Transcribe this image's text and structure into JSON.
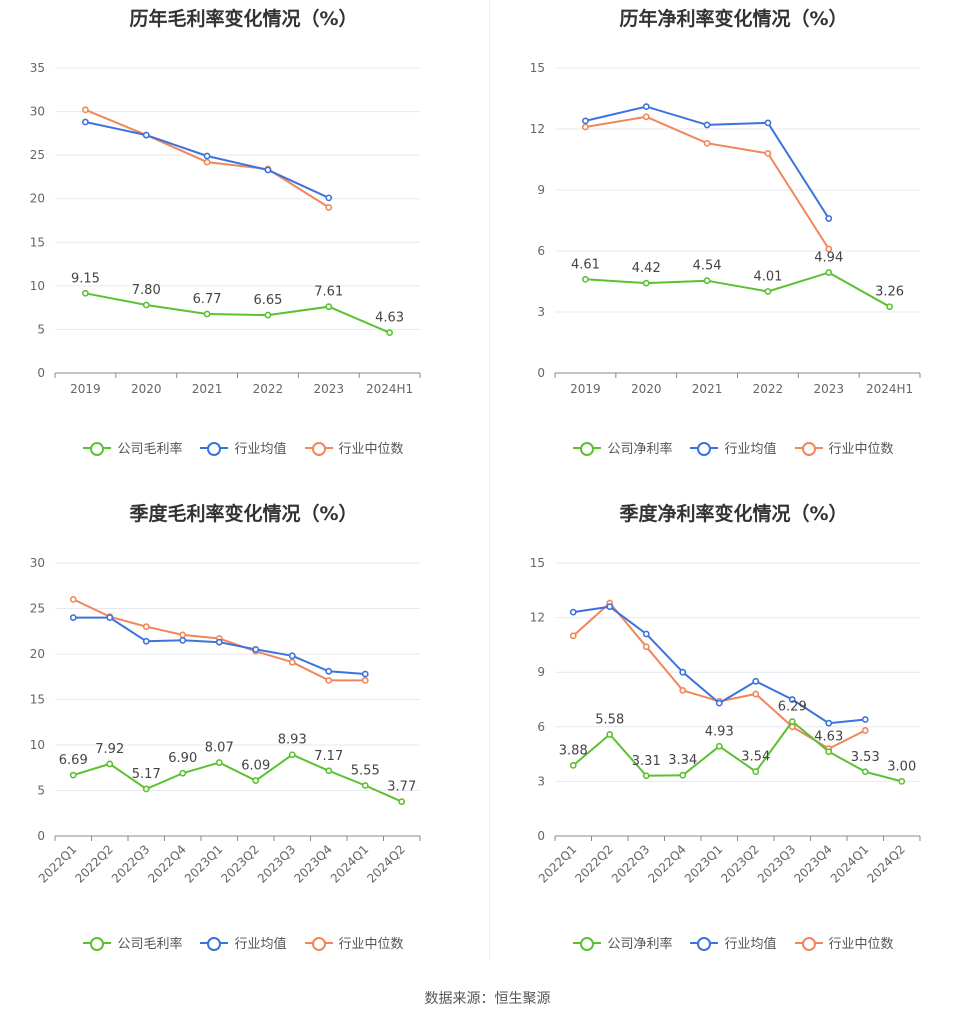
{
  "source_text": "数据来源：恒生聚源",
  "colors": {
    "company": "#5cc132",
    "avg": "#3b73de",
    "median": "#f0865a"
  },
  "legend_gross": [
    "公司毛利率",
    "行业均值",
    "行业中位数"
  ],
  "legend_net": [
    "公司净利率",
    "行业均值",
    "行业中位数"
  ],
  "chart_data": [
    {
      "type": "line",
      "title": "历年毛利率变化情况（%）",
      "categories": [
        "2019",
        "2020",
        "2021",
        "2022",
        "2023",
        "2024H1"
      ],
      "ylim": [
        0,
        35
      ],
      "yticks": [
        0,
        5,
        10,
        15,
        20,
        25,
        30,
        35
      ],
      "series": [
        {
          "name": "公司毛利率",
          "values": [
            9.15,
            7.8,
            6.77,
            6.65,
            7.61,
            4.63
          ],
          "labels": true
        },
        {
          "name": "行业均值",
          "values": [
            28.8,
            27.3,
            24.9,
            23.3,
            20.1,
            null
          ]
        },
        {
          "name": "行业中位数",
          "values": [
            30.2,
            27.3,
            24.2,
            23.4,
            19.0,
            null
          ]
        }
      ]
    },
    {
      "type": "line",
      "title": "历年净利率变化情况（%）",
      "categories": [
        "2019",
        "2020",
        "2021",
        "2022",
        "2023",
        "2024H1"
      ],
      "ylim": [
        0,
        15
      ],
      "yticks": [
        0,
        3,
        6,
        9,
        12,
        15
      ],
      "series": [
        {
          "name": "公司净利率",
          "values": [
            4.61,
            4.42,
            4.54,
            4.01,
            4.94,
            3.26
          ],
          "labels": true
        },
        {
          "name": "行业均值",
          "values": [
            12.4,
            13.1,
            12.2,
            12.3,
            7.6,
            null
          ]
        },
        {
          "name": "行业中位数",
          "values": [
            12.1,
            12.6,
            11.3,
            10.8,
            6.1,
            null
          ]
        }
      ]
    },
    {
      "type": "line",
      "title": "季度毛利率变化情况（%）",
      "categories": [
        "2022Q1",
        "2022Q2",
        "2022Q3",
        "2022Q4",
        "2023Q1",
        "2023Q2",
        "2023Q3",
        "2023Q4",
        "2024Q1",
        "2024Q2"
      ],
      "ylim": [
        0,
        30
      ],
      "yticks": [
        0,
        5,
        10,
        15,
        20,
        25,
        30
      ],
      "series": [
        {
          "name": "公司毛利率",
          "values": [
            6.69,
            7.92,
            5.17,
            6.9,
            8.07,
            6.09,
            8.93,
            7.17,
            5.55,
            3.77
          ],
          "labels": true
        },
        {
          "name": "行业均值",
          "values": [
            24.0,
            24.0,
            21.4,
            21.5,
            21.3,
            20.5,
            19.8,
            18.1,
            17.8,
            null
          ]
        },
        {
          "name": "行业中位数",
          "values": [
            26.0,
            24.1,
            23.0,
            22.1,
            21.7,
            20.3,
            19.1,
            17.1,
            17.1,
            null
          ]
        }
      ]
    },
    {
      "type": "line",
      "title": "季度净利率变化情况（%）",
      "categories": [
        "2022Q1",
        "2022Q2",
        "2022Q3",
        "2022Q4",
        "2023Q1",
        "2023Q2",
        "2023Q3",
        "2023Q4",
        "2024Q1",
        "2024Q2"
      ],
      "ylim": [
        0,
        15
      ],
      "yticks": [
        0,
        3,
        6,
        9,
        12,
        15
      ],
      "series": [
        {
          "name": "公司净利率",
          "values": [
            3.88,
            5.58,
            3.31,
            3.34,
            4.93,
            3.54,
            6.29,
            4.63,
            3.53,
            3.0
          ],
          "labels": true
        },
        {
          "name": "行业均值",
          "values": [
            12.3,
            12.6,
            11.1,
            9.0,
            7.3,
            8.5,
            7.5,
            6.2,
            6.4,
            null
          ]
        },
        {
          "name": "行业中位数",
          "values": [
            11.0,
            12.8,
            10.4,
            8.0,
            7.4,
            7.8,
            6.0,
            4.8,
            5.8,
            null
          ]
        }
      ]
    }
  ]
}
